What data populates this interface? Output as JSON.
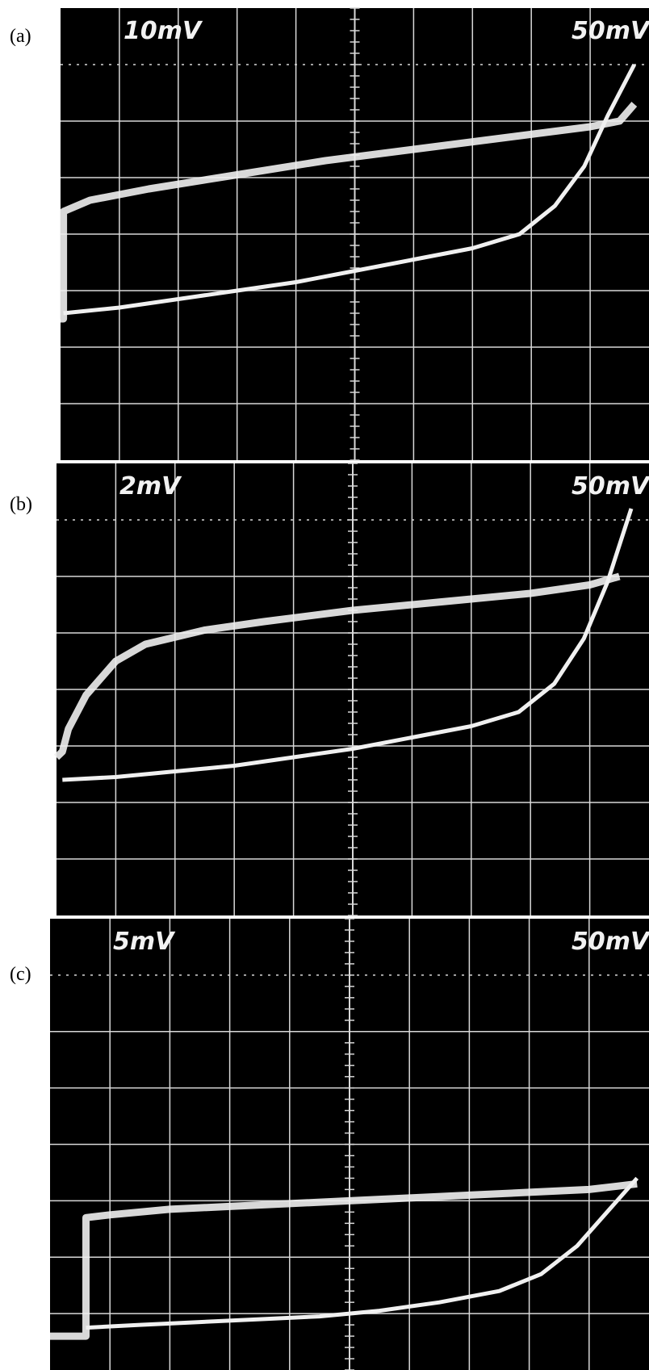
{
  "panels": [
    {
      "label": "(a)",
      "ch1_scale": "10mV",
      "ch2_scale": "50mV"
    },
    {
      "label": "(b)",
      "ch1_scale": "2mV",
      "ch2_scale": "50mV"
    },
    {
      "label": "(c)",
      "ch1_scale": "5mV",
      "ch2_scale": "50mV"
    }
  ],
  "colors": {
    "screen": "#000000",
    "trace": "#f0f0f0",
    "grid": "#d8d8d8"
  },
  "chart_data": [
    {
      "type": "line",
      "grid": true,
      "grid_divisions": {
        "x": 10,
        "y": 8
      },
      "series": [
        {
          "values": [
            [
              0.0,
              2.5
            ],
            [
              0.05,
              2.5
            ],
            [
              0.05,
              4.4
            ],
            [
              0.5,
              4.6
            ],
            [
              1.5,
              4.8
            ],
            [
              3,
              5.05
            ],
            [
              4.5,
              5.3
            ],
            [
              6,
              5.5
            ],
            [
              7.5,
              5.7
            ],
            [
              9,
              5.9
            ],
            [
              9.5,
              6.0
            ],
            [
              9.75,
              6.3
            ]
          ]
        },
        {
          "values": [
            [
              0.05,
              2.6
            ],
            [
              1,
              2.7
            ],
            [
              2,
              2.85
            ],
            [
              3,
              3.0
            ],
            [
              4,
              3.15
            ],
            [
              5,
              3.35
            ],
            [
              6,
              3.55
            ],
            [
              7,
              3.75
            ],
            [
              7.8,
              4.0
            ],
            [
              8.4,
              4.5
            ],
            [
              8.9,
              5.2
            ],
            [
              9.3,
              6.1
            ],
            [
              9.75,
              7.0
            ]
          ]
        }
      ]
    },
    {
      "type": "line",
      "grid": true,
      "grid_divisions": {
        "x": 10,
        "y": 8
      },
      "series": [
        {
          "values": [
            [
              0.0,
              2.8
            ],
            [
              0.1,
              2.9
            ],
            [
              0.2,
              3.3
            ],
            [
              0.5,
              3.9
            ],
            [
              1,
              4.5
            ],
            [
              1.5,
              4.8
            ],
            [
              2.5,
              5.05
            ],
            [
              3.5,
              5.2
            ],
            [
              5,
              5.4
            ],
            [
              6.5,
              5.55
            ],
            [
              8,
              5.7
            ],
            [
              9,
              5.85
            ],
            [
              9.5,
              6.0
            ]
          ]
        },
        {
          "values": [
            [
              0.1,
              2.4
            ],
            [
              1,
              2.45
            ],
            [
              2,
              2.55
            ],
            [
              3,
              2.65
            ],
            [
              4,
              2.8
            ],
            [
              5,
              2.95
            ],
            [
              6,
              3.15
            ],
            [
              7,
              3.35
            ],
            [
              7.8,
              3.6
            ],
            [
              8.4,
              4.1
            ],
            [
              8.9,
              4.9
            ],
            [
              9.3,
              5.9
            ],
            [
              9.7,
              7.2
            ]
          ]
        }
      ]
    },
    {
      "type": "line",
      "grid": true,
      "grid_divisions": {
        "x": 10,
        "y": 8
      },
      "series": [
        {
          "values": [
            [
              0.0,
              0.6
            ],
            [
              0.6,
              0.6
            ],
            [
              0.6,
              2.7
            ],
            [
              1,
              2.75
            ],
            [
              2,
              2.85
            ],
            [
              3,
              2.9
            ],
            [
              4,
              2.95
            ],
            [
              5,
              3.0
            ],
            [
              6,
              3.05
            ],
            [
              7,
              3.1
            ],
            [
              8,
              3.15
            ],
            [
              9,
              3.2
            ],
            [
              9.8,
              3.3
            ]
          ]
        },
        {
          "values": [
            [
              0.6,
              0.75
            ],
            [
              1.5,
              0.8
            ],
            [
              2.5,
              0.85
            ],
            [
              3.5,
              0.9
            ],
            [
              4.5,
              0.95
            ],
            [
              5.5,
              1.05
            ],
            [
              6.5,
              1.2
            ],
            [
              7.5,
              1.4
            ],
            [
              8.2,
              1.7
            ],
            [
              8.8,
              2.2
            ],
            [
              9.3,
              2.8
            ],
            [
              9.8,
              3.4
            ]
          ]
        }
      ]
    }
  ]
}
